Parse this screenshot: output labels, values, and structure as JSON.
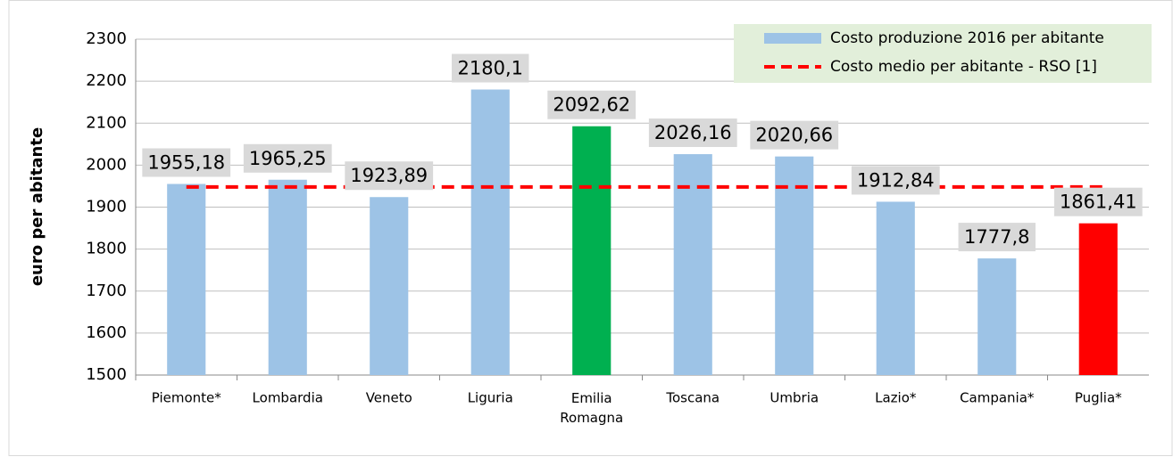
{
  "chart_data": {
    "type": "bar",
    "y_label": "euro per abitante",
    "categories": [
      "Piemonte*",
      "Lombardia",
      "Veneto",
      "Liguria",
      "Emilia Romagna",
      "Toscana",
      "Umbria",
      "Lazio*",
      "Campania*",
      "Puglia*"
    ],
    "series": [
      {
        "name": "Costo produzione 2016 per abitante",
        "color": "#9dc3e6",
        "values": [
          1955.18,
          1965.25,
          1923.89,
          2180.1,
          2092.62,
          2026.16,
          2020.66,
          1912.84,
          1777.8,
          1861.41
        ],
        "value_labels": [
          "1955,18",
          "1965,25",
          "1923,89",
          "2180,1",
          "2092,62",
          "2026,16",
          "2020,66",
          "1912,84",
          "1777,8",
          "1861,41"
        ],
        "colors": [
          "#9dc3e6",
          "#9dc3e6",
          "#9dc3e6",
          "#9dc3e6",
          "#00b050",
          "#9dc3e6",
          "#9dc3e6",
          "#9dc3e6",
          "#9dc3e6",
          "#ff0000"
        ]
      }
    ],
    "reference_lines": [
      {
        "name": "Costo medio per abitante - RSO [1]",
        "value": 1948,
        "color": "#ff0000",
        "style": "dashed"
      }
    ],
    "ylim": [
      1500,
      2300
    ],
    "yticks": [
      1500,
      1600,
      1700,
      1800,
      1900,
      2000,
      2100,
      2200,
      2300
    ],
    "grid": true,
    "legend": "upper right"
  }
}
